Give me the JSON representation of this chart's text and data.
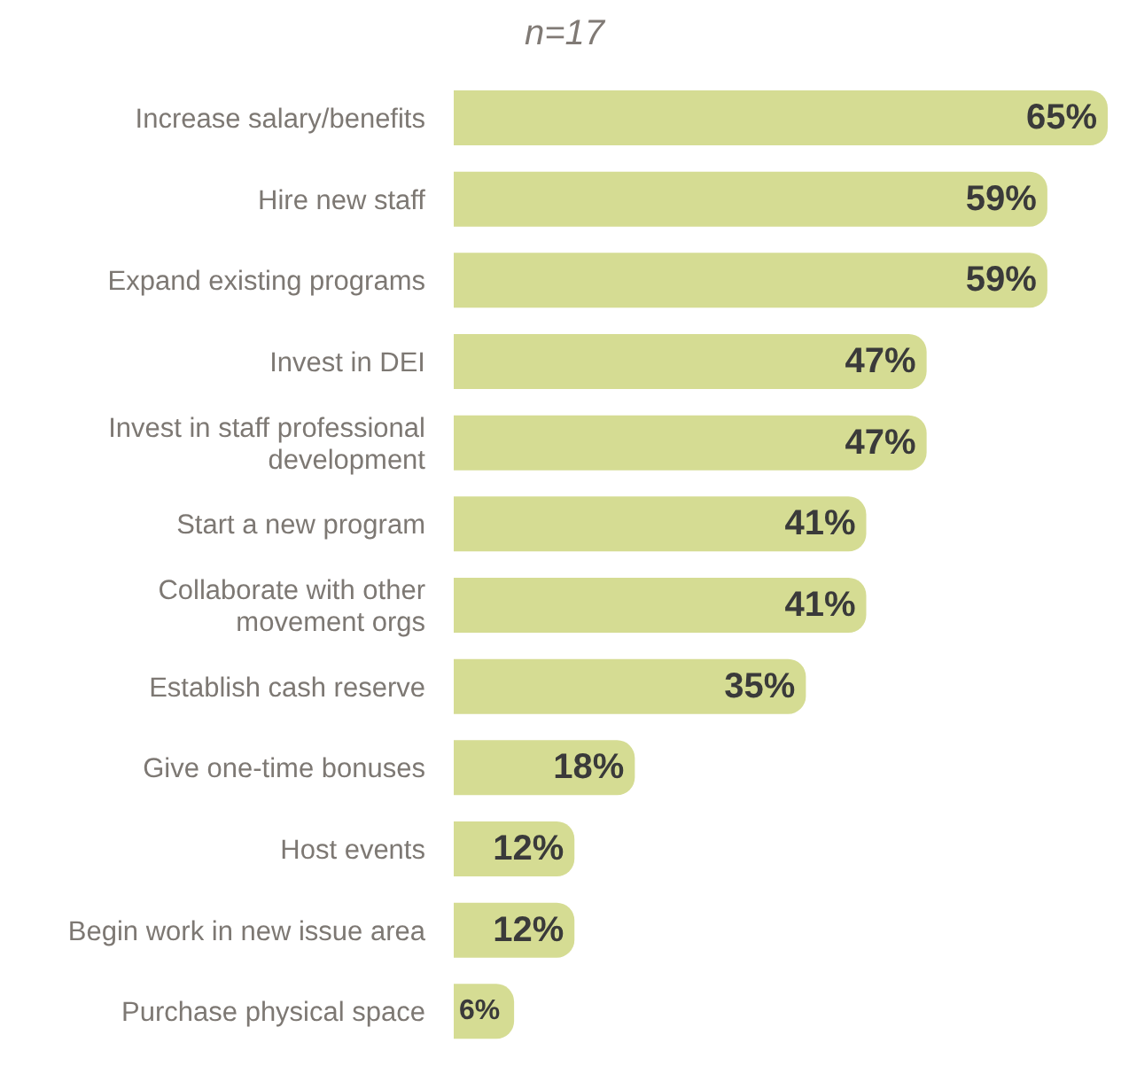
{
  "chart_data": {
    "type": "bar",
    "orientation": "horizontal",
    "subtitle": "n=17",
    "categories": [
      "Increase salary/benefits",
      "Hire new staff",
      "Expand existing programs",
      "Invest in DEI",
      "Invest in staff professional development",
      "Start a new program",
      "Collaborate with other movement orgs",
      "Establish cash reserve",
      "Give one-time bonuses",
      "Host events",
      "Begin work in new issue area",
      "Purchase physical space"
    ],
    "values": [
      65,
      59,
      59,
      47,
      47,
      41,
      41,
      35,
      18,
      12,
      12,
      6
    ],
    "value_labels": [
      "65%",
      "59%",
      "59%",
      "47%",
      "47%",
      "41%",
      "41%",
      "35%",
      "18%",
      "12%",
      "12%",
      "6%"
    ],
    "color": "#d5dc93",
    "legend": false,
    "grid": false
  }
}
